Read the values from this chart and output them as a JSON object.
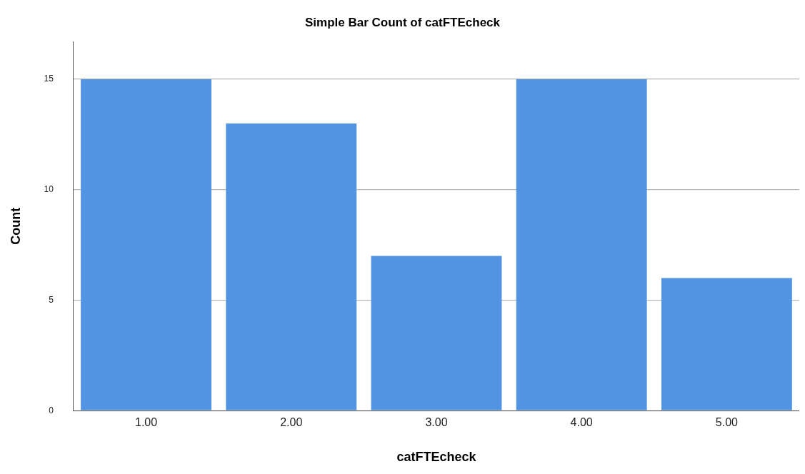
{
  "chart_data": {
    "type": "bar",
    "title": "Simple Bar Count of catFTEcheck",
    "xlabel": "catFTEcheck",
    "ylabel": "Count",
    "categories": [
      "1.00",
      "2.00",
      "3.00",
      "4.00",
      "5.00"
    ],
    "values": [
      15,
      13,
      7,
      15,
      6
    ],
    "color": "#5294e2",
    "ylim": [
      0,
      16.7
    ],
    "yticks": [
      0,
      5,
      10,
      15
    ],
    "grid": "y",
    "legend": false
  }
}
